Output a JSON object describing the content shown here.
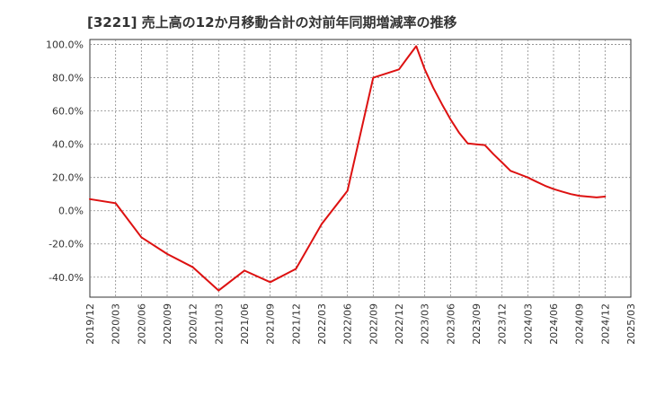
{
  "chart_data": {
    "type": "line",
    "title": "[3221]  売上高の12か月移動合計の対前年同期増減率の推移",
    "xlabel": "",
    "ylabel": "",
    "ylim": [
      -52,
      103
    ],
    "yticks": [
      100,
      80,
      60,
      40,
      20,
      0,
      -20,
      -40
    ],
    "ytick_labels": [
      "100.0%",
      "80.0%",
      "60.0%",
      "40.0%",
      "20.0%",
      "0.0%",
      "-20.0%",
      "-40.0%"
    ],
    "xtick_labels": [
      "2019/12",
      "2020/03",
      "2020/06",
      "2020/09",
      "2020/12",
      "2021/03",
      "2021/06",
      "2021/09",
      "2021/12",
      "2022/03",
      "2022/06",
      "2022/09",
      "2022/12",
      "2023/03",
      "2023/06",
      "2023/09",
      "2023/12",
      "2024/03",
      "2024/06",
      "2024/09",
      "2024/12",
      "2025/03"
    ],
    "grid": true,
    "series": [
      {
        "name": "対前年同期増減率",
        "color": "#dd1111",
        "x_index": [
          0,
          1,
          2,
          3,
          4,
          5,
          6,
          7,
          8,
          9,
          10,
          11,
          12,
          12.33,
          12.67,
          13,
          13.33,
          13.67,
          14,
          14.33,
          14.67,
          15,
          15.33,
          15.67,
          16,
          16.33,
          16.67,
          17,
          17.33,
          17.67,
          18,
          18.33,
          18.67,
          19,
          19.33,
          19.67,
          20
        ],
        "values": [
          7,
          4.5,
          -16,
          -26,
          -34,
          -48,
          -36,
          -43,
          -35,
          -8,
          12,
          80,
          85,
          92,
          99,
          85,
          74,
          64,
          55,
          47,
          40.5,
          40,
          39.5,
          34,
          29,
          24,
          22,
          20,
          17.5,
          15,
          13,
          11.5,
          10,
          9,
          8.5,
          8,
          8.5
        ]
      }
    ]
  }
}
